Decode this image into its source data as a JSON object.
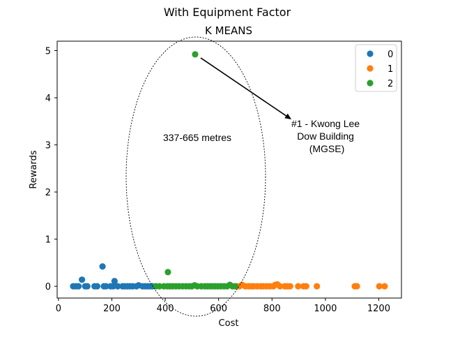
{
  "chart_data": {
    "type": "scatter",
    "suptitle": "With Equipment Factor",
    "title": "K MEANS",
    "xlabel": "Cost",
    "ylabel": "Rewards",
    "xlim": [
      -5,
      1285
    ],
    "ylim": [
      -0.25,
      5.2
    ],
    "xticks": [
      0,
      200,
      400,
      600,
      800,
      1000,
      1200
    ],
    "yticks": [
      0,
      1,
      2,
      3,
      4,
      5
    ],
    "grid": false,
    "legend_position": "top-right",
    "series": [
      {
        "name": "0",
        "color": "#1f77b4",
        "points": [
          [
            55,
            0
          ],
          [
            65,
            0
          ],
          [
            75,
            0
          ],
          [
            88,
            0.14
          ],
          [
            100,
            0
          ],
          [
            108,
            0
          ],
          [
            135,
            0
          ],
          [
            145,
            0
          ],
          [
            165,
            0.42
          ],
          [
            170,
            0
          ],
          [
            178,
            0
          ],
          [
            195,
            0
          ],
          [
            205,
            0
          ],
          [
            210,
            0.11
          ],
          [
            222,
            0
          ],
          [
            240,
            0
          ],
          [
            248,
            0
          ],
          [
            258,
            0
          ],
          [
            268,
            0
          ],
          [
            278,
            0
          ],
          [
            292,
            0
          ],
          [
            300,
            0.02
          ],
          [
            315,
            0
          ],
          [
            325,
            0
          ],
          [
            335,
            0
          ],
          [
            345,
            0
          ],
          [
            352,
            0
          ]
        ]
      },
      {
        "name": "1",
        "color": "#ff7f0e",
        "points": [
          [
            668,
            0
          ],
          [
            678,
            0
          ],
          [
            688,
            0.03
          ],
          [
            700,
            0
          ],
          [
            712,
            0
          ],
          [
            722,
            0
          ],
          [
            732,
            0
          ],
          [
            745,
            0
          ],
          [
            758,
            0
          ],
          [
            768,
            0
          ],
          [
            780,
            0
          ],
          [
            792,
            0
          ],
          [
            805,
            0
          ],
          [
            812,
            0.03
          ],
          [
            820,
            0.04
          ],
          [
            830,
            0
          ],
          [
            848,
            0
          ],
          [
            858,
            0
          ],
          [
            868,
            0
          ],
          [
            898,
            0
          ],
          [
            918,
            0
          ],
          [
            928,
            0
          ],
          [
            968,
            0
          ],
          [
            1110,
            0
          ],
          [
            1118,
            0
          ],
          [
            1202,
            0
          ],
          [
            1222,
            0
          ]
        ]
      },
      {
        "name": "2",
        "color": "#2ca02c",
        "points": [
          [
            512,
            4.92
          ],
          [
            410,
            0.3
          ],
          [
            365,
            0
          ],
          [
            378,
            0
          ],
          [
            395,
            0
          ],
          [
            408,
            0
          ],
          [
            418,
            0
          ],
          [
            428,
            0
          ],
          [
            440,
            0
          ],
          [
            452,
            0
          ],
          [
            465,
            0
          ],
          [
            478,
            0
          ],
          [
            490,
            0
          ],
          [
            500,
            0
          ],
          [
            510,
            0.02
          ],
          [
            520,
            0
          ],
          [
            535,
            0
          ],
          [
            548,
            0
          ],
          [
            558,
            0
          ],
          [
            568,
            0
          ],
          [
            578,
            0
          ],
          [
            588,
            0
          ],
          [
            598,
            0
          ],
          [
            608,
            0
          ],
          [
            620,
            0
          ],
          [
            632,
            0
          ],
          [
            642,
            0.03
          ],
          [
            652,
            0
          ],
          [
            662,
            0
          ]
        ]
      }
    ],
    "annotations": {
      "ellipse_text": "337-665 metres",
      "arrow_text_lines": [
        "#1 - Kwong Lee",
        "Dow Building",
        "(MGSE)"
      ]
    }
  }
}
